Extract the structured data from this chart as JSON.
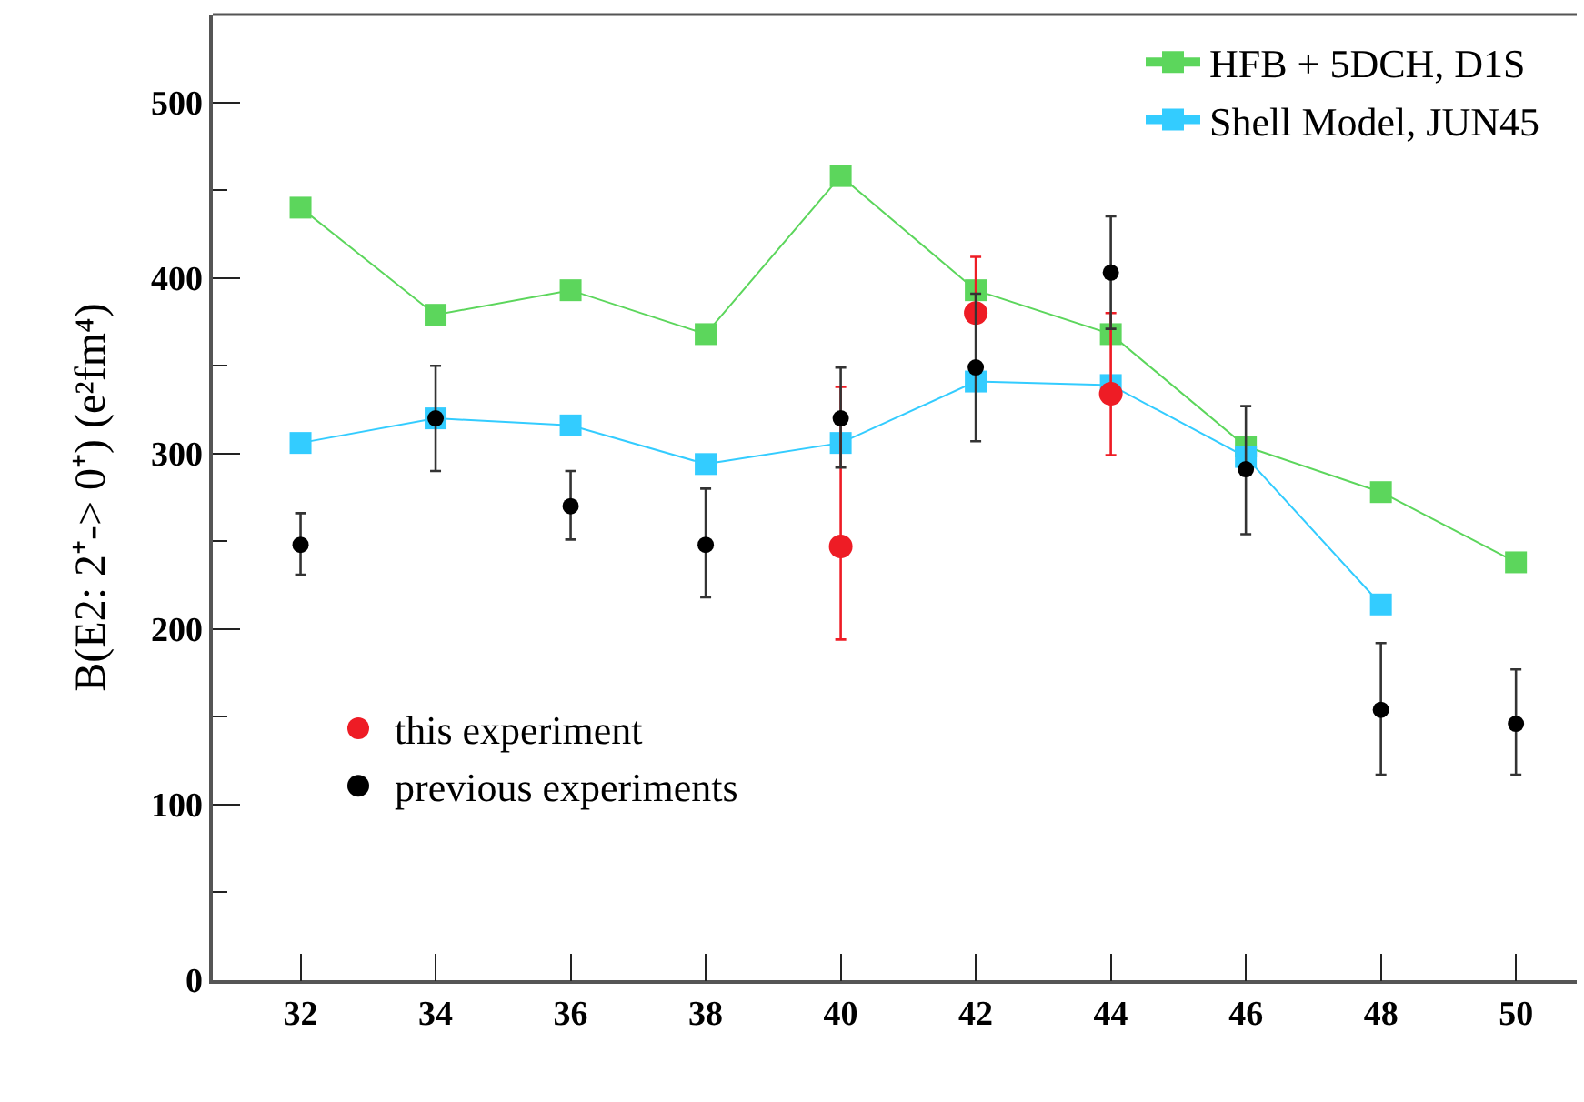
{
  "chart_data": {
    "type": "line",
    "ylabel": "B(E2: 2⁺-> 0⁺) (e²fm⁴)",
    "xlim": [
      30.7,
      50.9
    ],
    "ylim": [
      0,
      550
    ],
    "xticks": [
      32,
      34,
      36,
      38,
      40,
      42,
      44,
      46,
      48,
      50
    ],
    "yticks": [
      0,
      {
        "value": 50,
        "label": null
      },
      100,
      {
        "value": 150,
        "label": null
      },
      200,
      {
        "value": 250,
        "label": null
      },
      300,
      {
        "value": 350,
        "label": null
      },
      400,
      {
        "value": 450,
        "label": null
      },
      500
    ],
    "legend": [
      "top right",
      "bottom left"
    ],
    "series": [
      {
        "name": "HFB + 5DCH, D1S",
        "marker": "square",
        "color": "#5cd65c",
        "x": [
          32,
          34,
          36,
          38,
          40,
          42,
          44,
          46,
          48,
          50
        ],
        "values": [
          440,
          379,
          393,
          368,
          458,
          393,
          368,
          304,
          278,
          238
        ]
      },
      {
        "name": "Shell Model, JUN45",
        "marker": "square",
        "color": "#33ccff",
        "x": [
          32,
          34,
          36,
          38,
          40,
          42,
          44,
          46,
          48
        ],
        "values": [
          306,
          320,
          316,
          294,
          306,
          341,
          339,
          298,
          214
        ]
      },
      {
        "name": "this experiment",
        "type": "scatter",
        "marker": "circle",
        "color": "#ee1c25",
        "x": [
          40,
          42,
          44
        ],
        "values": [
          247,
          380,
          334
        ],
        "errors": [
          [
            194,
            338
          ],
          [
            380,
            412
          ],
          [
            299,
            380
          ]
        ]
      },
      {
        "name": "previous experiments",
        "type": "scatter",
        "marker": "circle",
        "color": "#000000",
        "x": [
          32,
          34,
          36,
          38,
          40,
          42,
          44,
          46,
          48,
          50
        ],
        "values": [
          248,
          320,
          270,
          248,
          320,
          349,
          403,
          291,
          154,
          146
        ],
        "errors": [
          [
            231,
            266
          ],
          [
            290,
            350
          ],
          [
            251,
            290
          ],
          [
            218,
            280
          ],
          [
            292,
            349
          ],
          [
            307,
            391
          ],
          [
            371,
            435
          ],
          [
            254,
            327
          ],
          [
            117,
            192
          ],
          [
            117,
            177
          ]
        ]
      }
    ]
  }
}
